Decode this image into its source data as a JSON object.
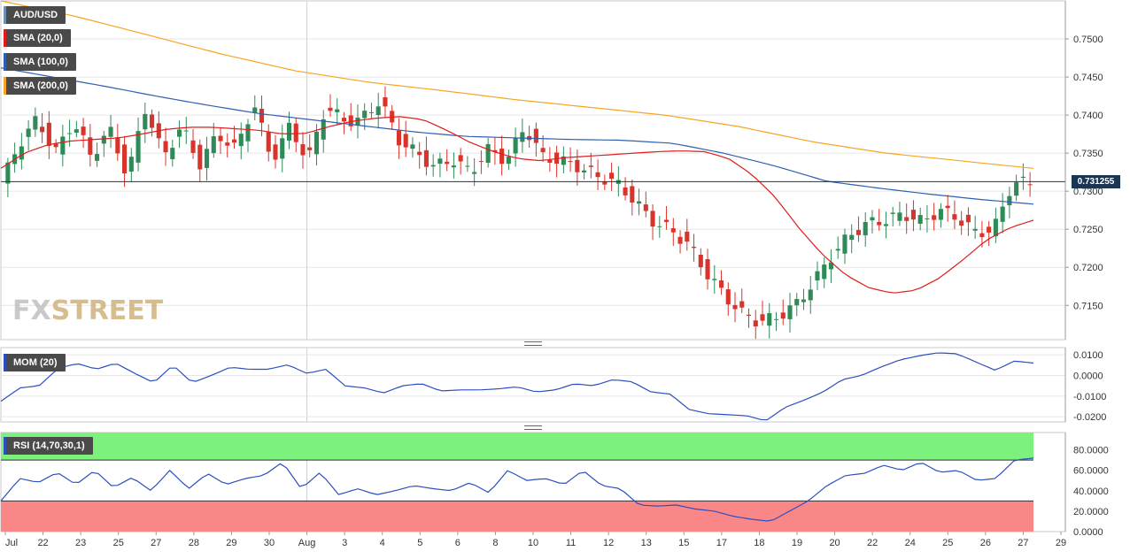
{
  "chart_data": [
    {
      "type": "candlestick",
      "symbol": "AUD/USD",
      "last_price": "0.731255",
      "y_ticks": [
        "0.7500",
        "0.7450",
        "0.7400",
        "0.7350",
        "0.7300",
        "0.7250",
        "0.7200",
        "0.7150"
      ],
      "ylim": [
        0.7105,
        0.755
      ],
      "x_ticks": [
        "Jul",
        "22",
        "23",
        "25",
        "27",
        "28",
        "29",
        "30",
        "Aug",
        "3",
        "4",
        "5",
        "6",
        "8",
        "10",
        "11",
        "12",
        "13",
        "15",
        "17",
        "18",
        "19",
        "20",
        "22",
        "24",
        "25",
        "26",
        "27",
        "29"
      ],
      "indicators": [
        {
          "name": "SMA (20,0)",
          "color": "#e01c1c"
        },
        {
          "name": "SMA (100,0)",
          "color": "#2f5fae"
        },
        {
          "name": "SMA (200,0)",
          "color": "#f5a623"
        }
      ],
      "price_path": [
        0.731,
        0.7362,
        0.7395,
        0.735,
        0.7392,
        0.7345,
        0.7382,
        0.732,
        0.741,
        0.7345,
        0.7385,
        0.7335,
        0.7375,
        0.7355,
        0.7415,
        0.734,
        0.7385,
        0.734,
        0.7412,
        0.7392,
        0.7395,
        0.742,
        0.7368,
        0.735,
        0.7332,
        0.7342,
        0.7325,
        0.7355,
        0.734,
        0.7385,
        0.7345,
        0.734,
        0.7332,
        0.732,
        0.7312,
        0.729,
        0.7262,
        0.725,
        0.7232,
        0.7195,
        0.7165,
        0.714,
        0.7128,
        0.7135,
        0.715,
        0.718,
        0.7215,
        0.7242,
        0.7258,
        0.7262,
        0.727,
        0.726,
        0.7275,
        0.7265,
        0.7245,
        0.725,
        0.731,
        0.7312
      ],
      "sma20_path": [
        0.733,
        0.735,
        0.7361,
        0.7366,
        0.7368,
        0.737,
        0.7375,
        0.7381,
        0.7384,
        0.7384,
        0.7382,
        0.738,
        0.7375,
        0.7376,
        0.7385,
        0.7392,
        0.7396,
        0.7398,
        0.7394,
        0.738,
        0.7364,
        0.7352,
        0.7343,
        0.734,
        0.7344,
        0.7346,
        0.7348,
        0.735,
        0.7352,
        0.7353,
        0.7352,
        0.7343,
        0.7322,
        0.7292,
        0.7252,
        0.7217,
        0.719,
        0.7173,
        0.7166,
        0.717,
        0.7186,
        0.721,
        0.7236,
        0.7252,
        0.7262
      ],
      "sma100_path": [
        0.7462,
        0.745,
        0.7438,
        0.7425,
        0.7413,
        0.7402,
        0.7394,
        0.7386,
        0.7378,
        0.7372,
        0.737,
        0.7368,
        0.7367,
        0.7363,
        0.735,
        0.7333,
        0.7313,
        0.7304,
        0.7296,
        0.7289,
        0.7283
      ],
      "sma200_path": [
        0.755,
        0.753,
        0.7505,
        0.748,
        0.7458,
        0.7443,
        0.7432,
        0.742,
        0.741,
        0.74,
        0.7385,
        0.7365,
        0.735,
        0.734,
        0.733
      ]
    },
    {
      "type": "line",
      "name": "MOM (20)",
      "color": "#2c4fbf",
      "y_ticks": [
        "0.0100",
        "0.0000",
        "-0.0100",
        "-0.0200"
      ],
      "ylim": [
        -0.0225,
        0.0135
      ],
      "values": [
        -0.0125,
        -0.006,
        -0.005,
        0.0035,
        0.0058,
        0.003,
        0.006,
        0.001,
        -0.0035,
        0.005,
        -0.0035,
        0.0,
        0.004,
        0.003,
        0.003,
        0.0052,
        0.001,
        0.003,
        -0.005,
        -0.006,
        -0.0085,
        -0.005,
        -0.004,
        -0.0075,
        -0.007,
        -0.007,
        -0.0065,
        -0.0055,
        -0.008,
        -0.007,
        -0.004,
        -0.005,
        -0.002,
        -0.003,
        -0.008,
        -0.009,
        -0.0165,
        -0.0185,
        -0.019,
        -0.0195,
        -0.022,
        -0.0155,
        -0.012,
        -0.008,
        -0.002,
        0.0,
        0.004,
        0.0075,
        0.0095,
        0.011,
        0.0105,
        0.0065,
        0.0025,
        0.007,
        0.006
      ]
    },
    {
      "type": "line",
      "name": "RSI (14,70,30,1)",
      "color": "#2c4fbf",
      "y_ticks": [
        "80.0000",
        "60.0000",
        "40.0000",
        "20.0000",
        "0.0000"
      ],
      "ylim": [
        0,
        97
      ],
      "upper_band": 70,
      "lower_band": 30,
      "values": [
        30,
        52,
        48,
        58,
        46,
        60,
        43,
        53,
        40,
        60,
        42,
        57,
        46,
        52,
        55,
        68,
        42,
        58,
        36,
        42,
        36,
        40,
        45,
        42,
        40,
        48,
        38,
        60,
        50,
        52,
        46,
        60,
        45,
        42,
        26,
        25,
        26,
        22,
        20,
        15,
        12,
        10,
        20,
        30,
        45,
        55,
        57,
        65,
        60,
        68,
        58,
        60,
        50,
        52,
        70,
        72
      ]
    }
  ]
}
